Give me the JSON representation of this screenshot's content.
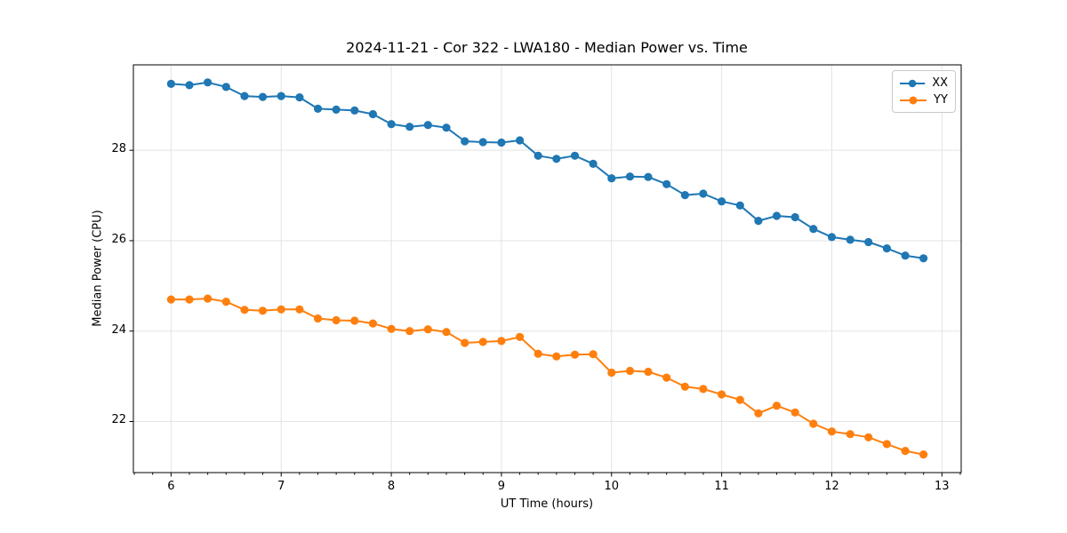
{
  "chart_data": {
    "type": "line",
    "title": "2024-11-21 - Cor 322 - LWA180 - Median Power vs. Time",
    "xlabel": "UT Time (hours)",
    "ylabel": "Median Power (CPU)",
    "xlim": [
      5.658,
      13.175
    ],
    "ylim": [
      20.87,
      29.89
    ],
    "xticks": [
      6,
      7,
      8,
      9,
      10,
      11,
      12,
      13
    ],
    "yticks": [
      22,
      24,
      26,
      28
    ],
    "x_minor_per_major": 6,
    "grid": true,
    "grid_color": "#e3e3e3",
    "spine_color": "#000000",
    "legend_position": "upper right",
    "x": [
      6.0,
      6.167,
      6.333,
      6.5,
      6.667,
      6.833,
      7.0,
      7.167,
      7.333,
      7.5,
      7.667,
      7.833,
      8.0,
      8.167,
      8.333,
      8.5,
      8.667,
      8.833,
      9.0,
      9.167,
      9.333,
      9.5,
      9.667,
      9.833,
      10.0,
      10.167,
      10.333,
      10.5,
      10.667,
      10.833,
      11.0,
      11.167,
      11.333,
      11.5,
      11.667,
      11.833,
      12.0,
      12.167,
      12.333,
      12.5,
      12.667,
      12.833
    ],
    "series": [
      {
        "name": "XX",
        "color": "#1f77b4",
        "marker": "circle",
        "values": [
          29.47,
          29.44,
          29.5,
          29.4,
          29.2,
          29.18,
          29.2,
          29.17,
          28.92,
          28.9,
          28.88,
          28.8,
          28.58,
          28.52,
          28.56,
          28.5,
          28.2,
          28.18,
          28.17,
          28.22,
          27.88,
          27.81,
          27.88,
          27.7,
          27.38,
          27.42,
          27.41,
          27.25,
          27.01,
          27.04,
          26.87,
          26.78,
          26.44,
          26.55,
          26.52,
          26.26,
          26.08,
          26.02,
          25.97,
          25.83,
          25.67,
          25.61
        ]
      },
      {
        "name": "YY",
        "color": "#ff7f0e",
        "marker": "circle",
        "values": [
          24.7,
          24.7,
          24.72,
          24.65,
          24.47,
          24.45,
          24.48,
          24.48,
          24.28,
          24.24,
          24.23,
          24.17,
          24.05,
          24.0,
          24.04,
          23.98,
          23.74,
          23.76,
          23.78,
          23.87,
          23.5,
          23.44,
          23.48,
          23.49,
          23.08,
          23.12,
          23.1,
          22.97,
          22.77,
          22.72,
          22.6,
          22.48,
          22.18,
          22.35,
          22.2,
          21.95,
          21.78,
          21.72,
          21.65,
          21.5,
          21.35,
          21.27
        ]
      }
    ]
  }
}
